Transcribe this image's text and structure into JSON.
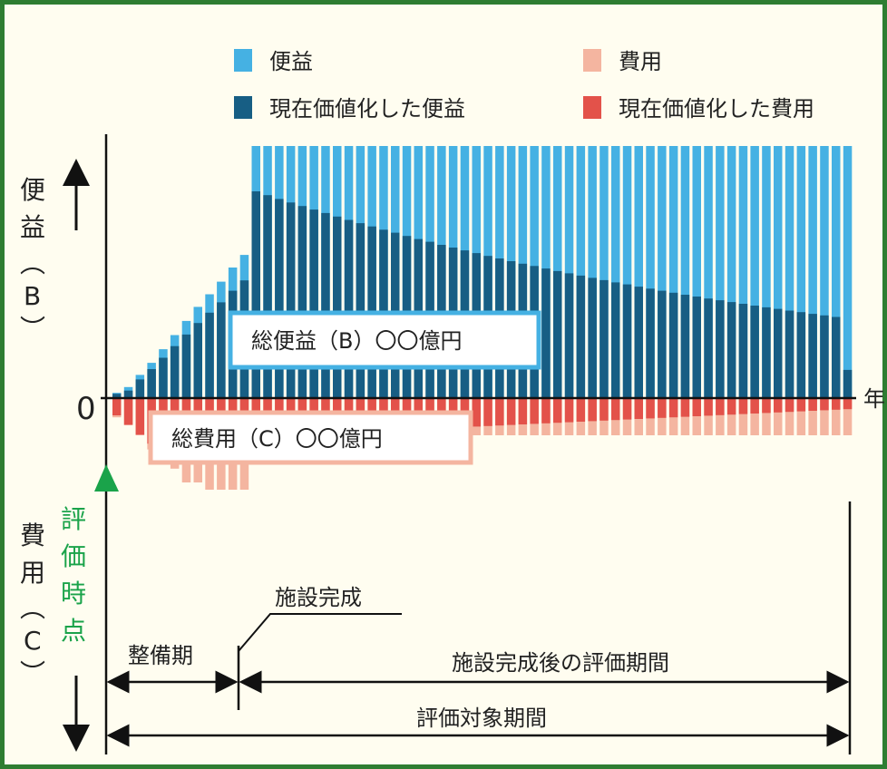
{
  "legend": {
    "benefit": "便益",
    "cost": "費用",
    "pv_benefit": "現在価値化した便益",
    "pv_cost": "現在価値化した費用"
  },
  "axes": {
    "y_benefit": [
      "便",
      "益",
      "︵",
      "B",
      "︶"
    ],
    "y_cost": [
      "費",
      "用",
      "︵",
      "C",
      "︶"
    ],
    "zero": "0",
    "x_unit": "年"
  },
  "eval_point": [
    "評",
    "価",
    "時",
    "点"
  ],
  "labels": {
    "total_benefit": "総便益（B）〇〇億円",
    "total_cost": "総費用（C）〇〇億円",
    "completion": "施設完成",
    "construction_period": "整備期",
    "post_completion_period": "施設完成後の評価期間",
    "evaluation_period": "評価対象期間"
  },
  "colors": {
    "benefit": "#45b1e3",
    "pv_benefit": "#175e84",
    "cost": "#f4b5a0",
    "pv_cost": "#e3524a",
    "eval": "#1aa34a",
    "frame": "#2e7d32"
  },
  "chart_data": {
    "type": "bar",
    "construction_years": 12,
    "operation_years": 52,
    "benefit": [
      0.021,
      0.044,
      0.092,
      0.14,
      0.194,
      0.25,
      0.306,
      0.362,
      0.412,
      0.462,
      0.518,
      0.568,
      1,
      1,
      1,
      1,
      1,
      1,
      1,
      1,
      1,
      1,
      1,
      1,
      1,
      1,
      1,
      1,
      1,
      1,
      1,
      1,
      1,
      1,
      1,
      1,
      1,
      1,
      1,
      1,
      1,
      1,
      1,
      1,
      1,
      1,
      1,
      1,
      1,
      1,
      1,
      1,
      1,
      1,
      1,
      1,
      1,
      1,
      1,
      1,
      1,
      1,
      1,
      1
    ],
    "pv_benefit": [
      0.017,
      0.03,
      0.074,
      0.115,
      0.16,
      0.206,
      0.252,
      0.298,
      0.339,
      0.38,
      0.426,
      0.467,
      0.82,
      0.805,
      0.79,
      0.776,
      0.762,
      0.748,
      0.734,
      0.72,
      0.707,
      0.694,
      0.681,
      0.668,
      0.656,
      0.643,
      0.631,
      0.62,
      0.608,
      0.597,
      0.586,
      0.575,
      0.564,
      0.554,
      0.543,
      0.533,
      0.524,
      0.514,
      0.504,
      0.495,
      0.486,
      0.477,
      0.468,
      0.459,
      0.451,
      0.442,
      0.434,
      0.426,
      0.418,
      0.41,
      0.403,
      0.395,
      0.388,
      0.381,
      0.374,
      0.367,
      0.36,
      0.354,
      0.347,
      0.341,
      0.334,
      0.328,
      0.322,
      0.112
    ],
    "cost": [
      0.106,
      0.148,
      0.203,
      0.283,
      0.336,
      0.389,
      0.465,
      0.465,
      0.505,
      0.505,
      0.505,
      0.505,
      0.205,
      0.205,
      0.205,
      0.205,
      0.205,
      0.205,
      0.205,
      0.205,
      0.205,
      0.205,
      0.205,
      0.205,
      0.205,
      0.205,
      0.205,
      0.205,
      0.205,
      0.205,
      0.205,
      0.205,
      0.205,
      0.205,
      0.205,
      0.205,
      0.205,
      0.205,
      0.205,
      0.205,
      0.205,
      0.205,
      0.205,
      0.205,
      0.205,
      0.205,
      0.205,
      0.205,
      0.205,
      0.205,
      0.205,
      0.205,
      0.205,
      0.205,
      0.205,
      0.205,
      0.205,
      0.205,
      0.205,
      0.205,
      0.205,
      0.205,
      0.205,
      0.205
    ],
    "pv_cost": [
      0.095,
      0.148,
      0.203,
      0.251,
      0.29,
      0.336,
      0.35,
      0.35,
      0.35,
      0.35,
      0.35,
      0.35,
      0.205,
      0.204,
      0.203,
      0.202,
      0.2,
      0.198,
      0.195,
      0.193,
      0.19,
      0.187,
      0.184,
      0.181,
      0.178,
      0.175,
      0.172,
      0.169,
      0.166,
      0.163,
      0.16,
      0.157,
      0.154,
      0.151,
      0.148,
      0.145,
      0.142,
      0.139,
      0.136,
      0.133,
      0.13,
      0.127,
      0.124,
      0.121,
      0.118,
      0.115,
      0.112,
      0.109,
      0.106,
      0.103,
      0.1,
      0.097,
      0.094,
      0.091,
      0.088,
      0.085,
      0.082,
      0.079,
      0.076,
      0.073,
      0.07,
      0.067,
      0.064,
      0.061
    ]
  }
}
